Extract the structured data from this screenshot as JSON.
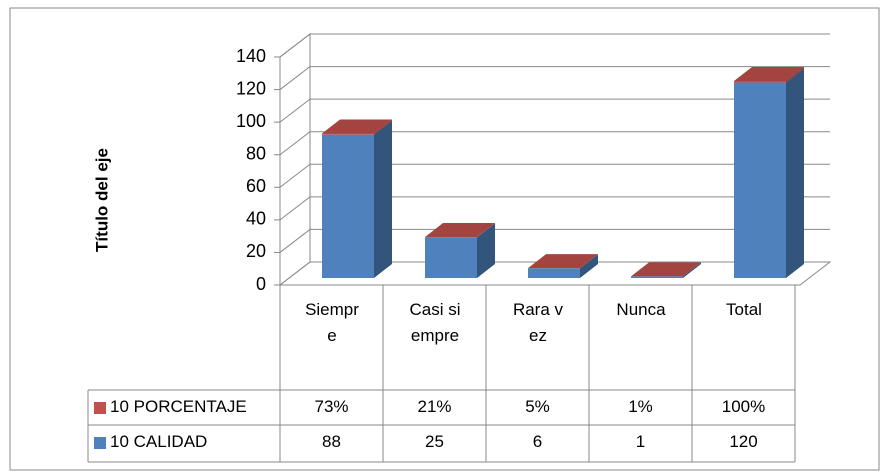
{
  "chart_data": {
    "type": "bar",
    "stacked": true,
    "y_label": "Título del eje",
    "categories": [
      "Siempre",
      "Casi siempre",
      "Rara vez",
      "Nunca",
      "Total"
    ],
    "series": [
      {
        "name": "10 CALIDAD",
        "color": "#4f81bd",
        "values": [
          88,
          25,
          6,
          1,
          120
        ]
      },
      {
        "name": "10 PORCENTAJE",
        "color": "#c0504d",
        "values": [
          0.73,
          0.21,
          0.05,
          0.01,
          1
        ],
        "value_labels": [
          "73%",
          "21%",
          "5%",
          "1%",
          "100%"
        ]
      }
    ],
    "ylim": [
      0,
      140
    ],
    "yticks": [
      0,
      20,
      40,
      60,
      80,
      100,
      120,
      140
    ],
    "grid": true
  }
}
